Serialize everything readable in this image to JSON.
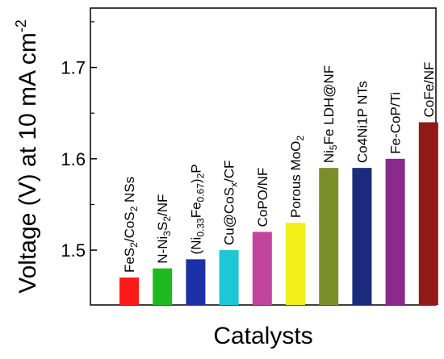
{
  "chart_data": {
    "type": "bar",
    "xlabel": "Catalysts",
    "ylabel": "Voltage (V) at 10 mA cm",
    "ylabel_sup": "-2",
    "ylim": [
      1.44,
      1.765
    ],
    "yticks": [
      1.5,
      1.6,
      1.7
    ],
    "ytick_labels": [
      "1.5",
      "1.6",
      "1.7"
    ],
    "grid": false,
    "categories": [
      "FeS2/CoS2 NSs",
      "N-Ni3S2/NF",
      "(Ni0.33Fe0.67)2P",
      "Cu@CoSx/CF",
      "CoPO/NF",
      "Porous MoO2",
      "Ni5Fe LDH@NF",
      "Co4Ni1P NTs",
      "Fe-CoP/Ti",
      "CoFe/NF"
    ],
    "label_parts": [
      [
        [
          "FeS",
          ""
        ],
        [
          "2",
          "sub"
        ],
        [
          "/CoS",
          ""
        ],
        [
          "2",
          "sub"
        ],
        [
          " NSs",
          ""
        ]
      ],
      [
        [
          "N-Ni",
          ""
        ],
        [
          "3",
          "sub"
        ],
        [
          "S",
          ""
        ],
        [
          "2",
          "sub"
        ],
        [
          "/NF",
          ""
        ]
      ],
      [
        [
          "(Ni",
          ""
        ],
        [
          "0.33",
          "sub"
        ],
        [
          "Fe",
          ""
        ],
        [
          "0.67",
          "sub"
        ],
        [
          ")",
          ""
        ],
        [
          "2",
          "sub"
        ],
        [
          "P",
          ""
        ]
      ],
      [
        [
          "Cu@CoS",
          ""
        ],
        [
          "x",
          "sub"
        ],
        [
          "/CF",
          ""
        ]
      ],
      [
        [
          "CoPO/NF",
          ""
        ]
      ],
      [
        [
          "Porous MoO",
          ""
        ],
        [
          "2",
          "sub"
        ]
      ],
      [
        [
          "Ni",
          ""
        ],
        [
          "5",
          "sub"
        ],
        [
          "Fe LDH@NF",
          ""
        ]
      ],
      [
        [
          "Co4Ni1P NTs",
          ""
        ]
      ],
      [
        [
          "Fe-CoP/Ti",
          ""
        ]
      ],
      [
        [
          "CoFe/NF",
          ""
        ]
      ]
    ],
    "values": [
      1.47,
      1.48,
      1.49,
      1.5,
      1.52,
      1.53,
      1.59,
      1.59,
      1.6,
      1.64
    ],
    "colors": [
      "#ff1a1a",
      "#1fb81f",
      "#1a2fa8",
      "#1ec6d6",
      "#c2449c",
      "#f2ef1a",
      "#7a8f2a",
      "#1b2a7a",
      "#8a2a8c",
      "#8e1a1a"
    ]
  }
}
